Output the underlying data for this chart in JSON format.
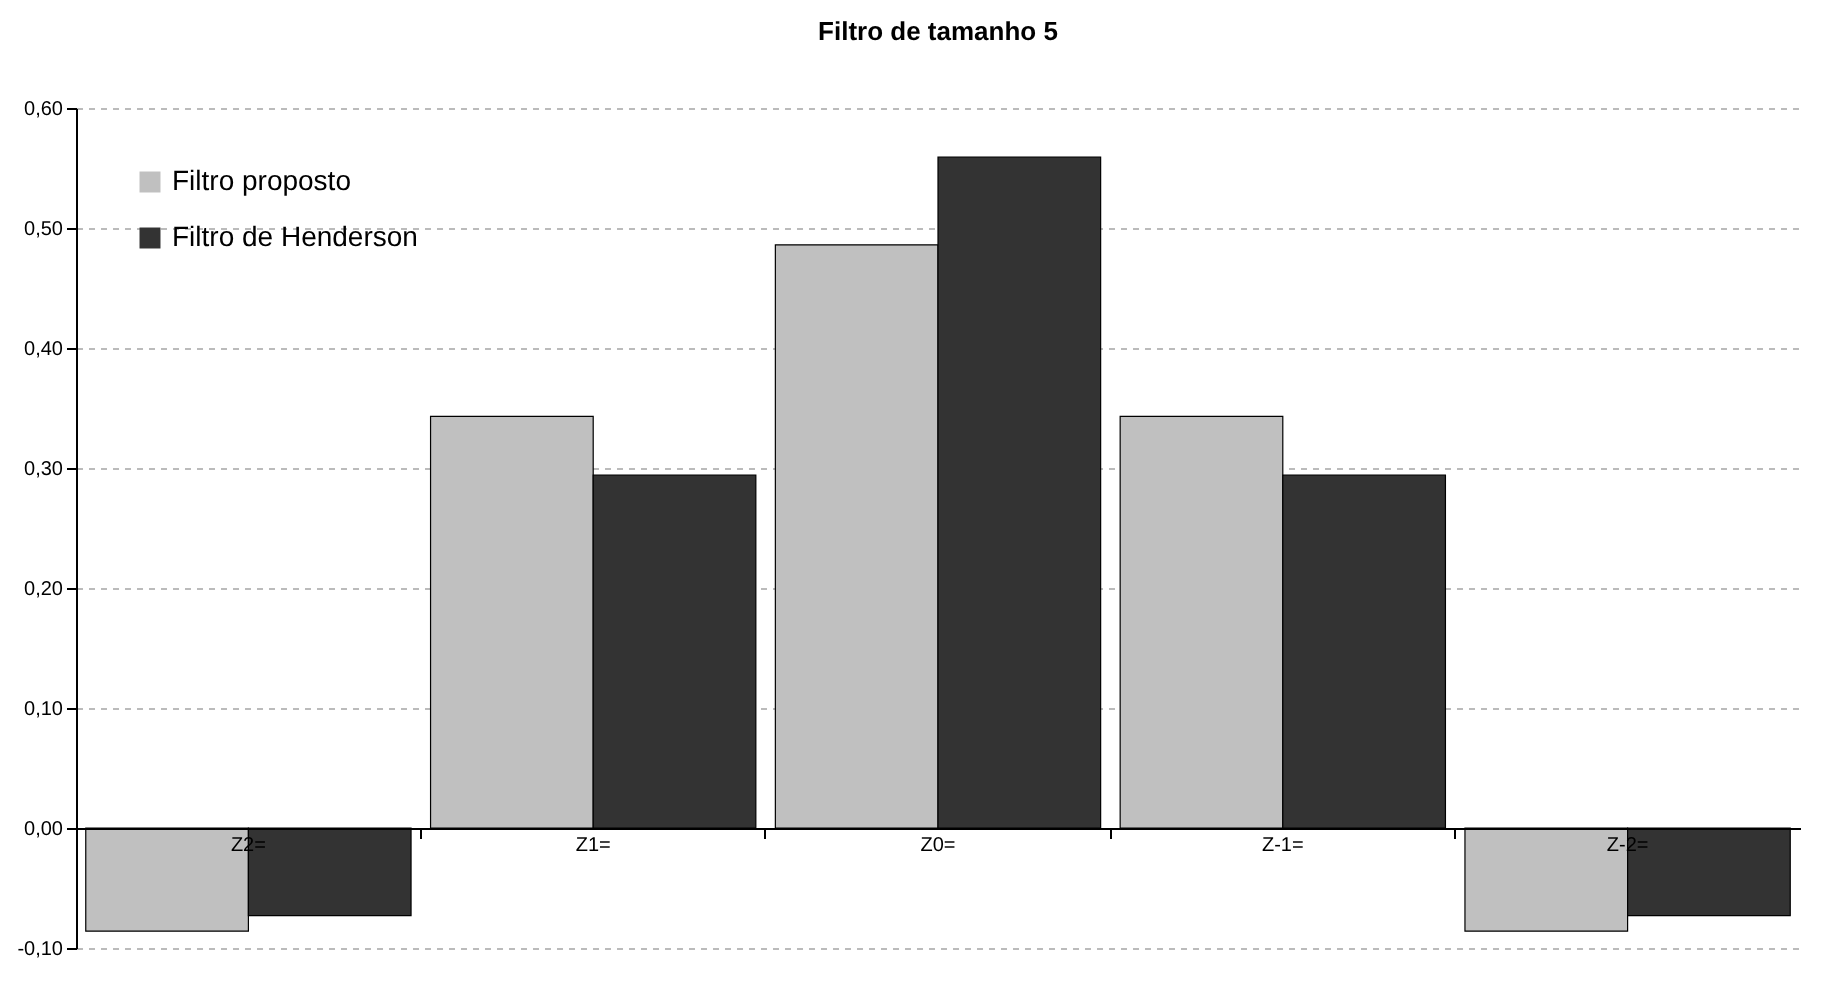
{
  "chart_data": {
    "type": "bar",
    "title": "Filtro de tamanho 5",
    "categories": [
      "Z2=",
      "Z1=",
      "Z0=",
      "Z-1=",
      "Z-2="
    ],
    "series": [
      {
        "name": "Filtro proposto",
        "color": "#c0c0c0",
        "values": [
          -0.086,
          0.343,
          0.486,
          0.343,
          -0.086
        ]
      },
      {
        "name": "Filtro de Henderson",
        "color": "#333333",
        "values": [
          -0.073,
          0.294,
          0.559,
          0.294,
          -0.073
        ]
      }
    ],
    "ylim": [
      -0.1,
      0.6
    ],
    "yticks": [
      {
        "value": -0.1,
        "label": "-0,10"
      },
      {
        "value": 0,
        "label": "0,00"
      },
      {
        "value": 0.1,
        "label": "0,10"
      },
      {
        "value": 0.2,
        "label": "0,20"
      },
      {
        "value": 0.3,
        "label": "0,30"
      },
      {
        "value": 0.4,
        "label": "0,40"
      },
      {
        "value": 0.5,
        "label": "0,50"
      },
      {
        "value": 0.6,
        "label": "0,60"
      }
    ],
    "grid": "y",
    "legend": "top left"
  }
}
